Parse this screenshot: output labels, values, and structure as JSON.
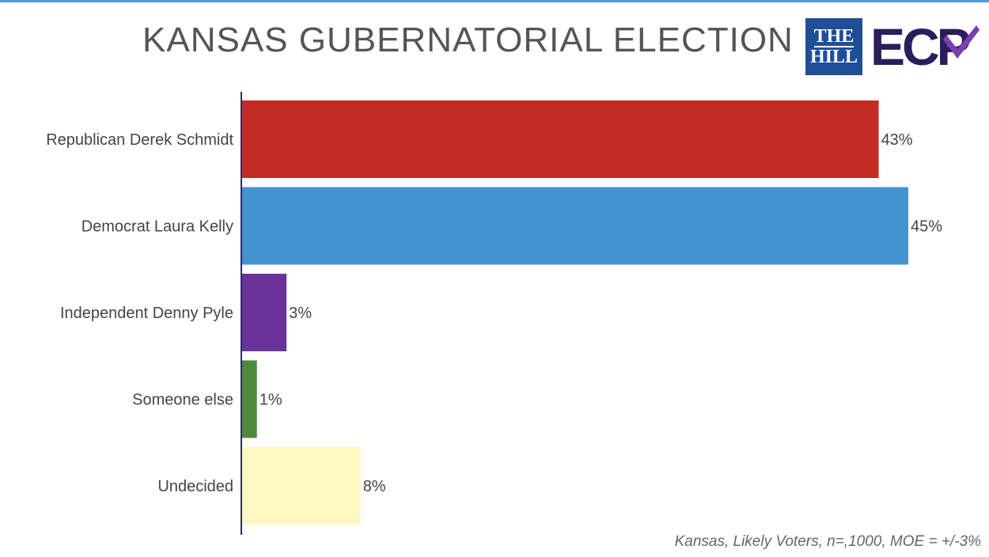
{
  "header": {
    "title": "KANSAS GUBERNATORIAL ELECTION",
    "logo_hill_line1": "THE",
    "logo_hill_line2": "HILL",
    "logo_ecp": "ECP"
  },
  "footer": {
    "note": "Kansas, Likely Voters, n=,1000, MOE = +/-3%"
  },
  "chart_data": {
    "type": "bar",
    "orientation": "horizontal",
    "title": "KANSAS GUBERNATORIAL ELECTION",
    "categories": [
      "Republican Derek Schmidt",
      "Democrat Laura Kelly",
      "Independent Denny Pyle",
      "Someone else",
      "Undecided"
    ],
    "values": [
      43,
      45,
      3,
      1,
      8
    ],
    "labels": [
      "43%",
      "45%",
      "3%",
      "1%",
      "8%"
    ],
    "colors": [
      "#c42b25",
      "#4394d1",
      "#6a3399",
      "#4e8a3c",
      "#fdf7c2"
    ],
    "xlim": [
      0,
      50
    ],
    "grid": false,
    "legend": "none",
    "xlabel": "",
    "ylabel": ""
  }
}
